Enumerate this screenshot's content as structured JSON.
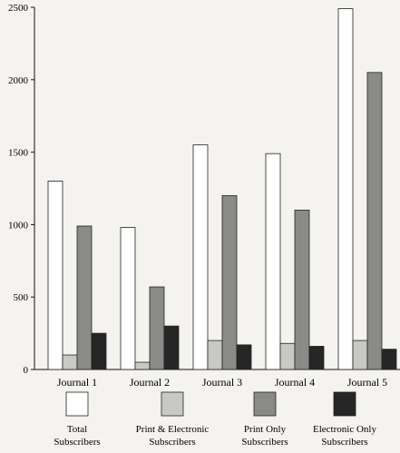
{
  "chart_data": {
    "type": "bar",
    "title": "",
    "xlabel": "",
    "ylabel": "",
    "ylim": [
      0,
      2500
    ],
    "yticks": [
      0,
      500,
      1000,
      1500,
      2000,
      2500
    ],
    "categories": [
      "Journal 1",
      "Journal 2",
      "Journal 3",
      "Journal 4",
      "Journal 5"
    ],
    "series": [
      {
        "name": "Total Subscribers",
        "legend_lines": [
          "Total",
          "Subscribers"
        ],
        "color": "#ffffff",
        "values": [
          1300,
          980,
          1550,
          1490,
          2490
        ]
      },
      {
        "name": "Print & Electronic Subscribers",
        "legend_lines": [
          "Print & Electronic",
          "Subscribers"
        ],
        "color": "#c8c8c4",
        "values": [
          100,
          50,
          200,
          180,
          200
        ]
      },
      {
        "name": "Print Only Subscribers",
        "legend_lines": [
          "Print Only",
          "Subscribers"
        ],
        "color": "#8a8a86",
        "values": [
          990,
          570,
          1200,
          1100,
          2050
        ]
      },
      {
        "name": "Electronic Only Subscribers",
        "legend_lines": [
          "Electronic Only",
          "Subscribers"
        ],
        "color": "#262626",
        "values": [
          250,
          300,
          170,
          160,
          140
        ]
      }
    ],
    "grid": false,
    "legend_position": "bottom"
  }
}
